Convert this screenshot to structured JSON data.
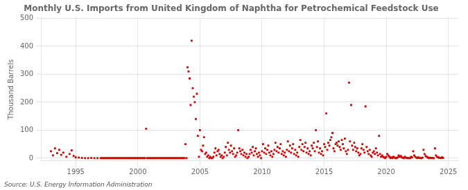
{
  "chart_data": {
    "type": "scatter",
    "title": "Monthly U.S. Imports from United Kingdom of Naphtha for Petrochemical Feedstock Use",
    "ylabel": "Thousand Barrels",
    "source": "Source: U.S. Energy Information Administration",
    "color": "#cc0000",
    "marker": "square",
    "grid": true,
    "xlim": [
      1992.2,
      2025.8
    ],
    "ylim": [
      -8,
      500
    ],
    "xticks": [
      1995,
      2000,
      2005,
      2010,
      2015,
      2020,
      2025
    ],
    "yticks": [
      0,
      100,
      200,
      300,
      400,
      500
    ],
    "x": [
      1993.0,
      1993.17,
      1993.33,
      1993.5,
      1993.67,
      1993.83,
      1994.0,
      1994.25,
      1994.5,
      1994.67,
      1994.83,
      1995.0,
      1995.25,
      1995.5,
      1995.75,
      1996.0,
      1996.25,
      1996.5,
      1996.75,
      1997.0,
      1997.08,
      1997.17,
      1997.25,
      1997.33,
      1997.42,
      1997.5,
      1997.58,
      1997.67,
      1997.75,
      1997.83,
      1997.92,
      1998.0,
      1998.08,
      1998.17,
      1998.25,
      1998.33,
      1998.42,
      1998.5,
      1998.58,
      1998.67,
      1998.75,
      1998.83,
      1998.92,
      1999.0,
      1999.08,
      1999.17,
      1999.25,
      1999.33,
      1999.42,
      1999.5,
      1999.58,
      1999.67,
      1999.75,
      1999.83,
      1999.92,
      2000.0,
      2000.08,
      2000.17,
      2000.25,
      2000.33,
      2000.42,
      2000.5,
      2000.58,
      2000.67,
      2000.75,
      2000.83,
      2000.92,
      2001.0,
      2001.08,
      2001.17,
      2001.25,
      2001.33,
      2001.42,
      2001.5,
      2001.58,
      2001.67,
      2001.75,
      2001.83,
      2001.92,
      2002.0,
      2002.08,
      2002.17,
      2002.25,
      2002.33,
      2002.42,
      2002.5,
      2002.58,
      2002.67,
      2002.75,
      2002.83,
      2002.92,
      2003.0,
      2003.08,
      2003.17,
      2003.25,
      2003.33,
      2003.42,
      2003.5,
      2003.58,
      2003.67,
      2003.75,
      2003.83,
      2003.92,
      2004.0,
      2004.08,
      2004.17,
      2004.25,
      2004.33,
      2004.42,
      2004.5,
      2004.58,
      2004.67,
      2004.75,
      2004.83,
      2004.92,
      2005.0,
      2005.08,
      2005.17,
      2005.25,
      2005.33,
      2005.42,
      2005.5,
      2005.58,
      2005.67,
      2005.75,
      2005.83,
      2005.92,
      2006.0,
      2006.08,
      2006.17,
      2006.25,
      2006.33,
      2006.42,
      2006.5,
      2006.58,
      2006.67,
      2006.75,
      2006.83,
      2006.92,
      2007.0,
      2007.08,
      2007.17,
      2007.25,
      2007.33,
      2007.42,
      2007.5,
      2007.58,
      2007.67,
      2007.75,
      2007.83,
      2007.92,
      2008.0,
      2008.08,
      2008.17,
      2008.25,
      2008.33,
      2008.42,
      2008.5,
      2008.58,
      2008.67,
      2008.75,
      2008.83,
      2008.92,
      2009.0,
      2009.08,
      2009.17,
      2009.25,
      2009.33,
      2009.42,
      2009.5,
      2009.58,
      2009.67,
      2009.75,
      2009.83,
      2009.92,
      2010.0,
      2010.08,
      2010.17,
      2010.25,
      2010.33,
      2010.42,
      2010.5,
      2010.58,
      2010.67,
      2010.75,
      2010.83,
      2010.92,
      2011.0,
      2011.08,
      2011.17,
      2011.25,
      2011.33,
      2011.42,
      2011.5,
      2011.58,
      2011.67,
      2011.75,
      2011.83,
      2011.92,
      2012.0,
      2012.08,
      2012.17,
      2012.25,
      2012.33,
      2012.42,
      2012.5,
      2012.58,
      2012.67,
      2012.75,
      2012.83,
      2012.92,
      2013.0,
      2013.08,
      2013.17,
      2013.25,
      2013.33,
      2013.42,
      2013.5,
      2013.58,
      2013.67,
      2013.75,
      2013.83,
      2013.92,
      2014.0,
      2014.08,
      2014.17,
      2014.25,
      2014.33,
      2014.42,
      2014.5,
      2014.58,
      2014.67,
      2014.75,
      2014.83,
      2014.92,
      2015.0,
      2015.08,
      2015.17,
      2015.25,
      2015.33,
      2015.42,
      2015.5,
      2015.58,
      2015.67,
      2015.75,
      2015.83,
      2015.92,
      2016.0,
      2016.08,
      2016.17,
      2016.25,
      2016.33,
      2016.42,
      2016.5,
      2016.58,
      2016.67,
      2016.75,
      2016.83,
      2016.92,
      2017.0,
      2017.08,
      2017.17,
      2017.25,
      2017.33,
      2017.42,
      2017.5,
      2017.58,
      2017.67,
      2017.75,
      2017.83,
      2017.92,
      2018.0,
      2018.08,
      2018.17,
      2018.25,
      2018.33,
      2018.42,
      2018.5,
      2018.58,
      2018.67,
      2018.75,
      2018.83,
      2018.92,
      2019.0,
      2019.08,
      2019.17,
      2019.25,
      2019.33,
      2019.42,
      2019.5,
      2019.58,
      2019.67,
      2019.75,
      2019.83,
      2019.92,
      2020.0,
      2020.08,
      2020.17,
      2020.25,
      2020.33,
      2020.42,
      2020.5,
      2020.58,
      2020.67,
      2020.75,
      2020.83,
      2020.92,
      2021.0,
      2021.08,
      2021.17,
      2021.25,
      2021.33,
      2021.42,
      2021.5,
      2021.58,
      2021.67,
      2021.75,
      2021.83,
      2021.92,
      2022.0,
      2022.08,
      2022.17,
      2022.25,
      2022.33,
      2022.42,
      2022.5,
      2022.58,
      2022.67,
      2022.75,
      2022.83,
      2022.92,
      2023.0,
      2023.08,
      2023.17,
      2023.25,
      2023.33,
      2023.42,
      2023.5,
      2023.58,
      2023.67,
      2023.75,
      2023.83,
      2023.92,
      2024.0,
      2024.08,
      2024.17,
      2024.25,
      2024.33,
      2024.42,
      2024.5,
      2024.58
    ],
    "values": [
      25,
      10,
      35,
      18,
      30,
      12,
      20,
      5,
      15,
      28,
      8,
      3,
      2,
      1,
      0,
      0,
      1,
      0,
      0,
      0,
      0,
      0,
      0,
      0,
      0,
      0,
      0,
      0,
      0,
      0,
      0,
      0,
      0,
      0,
      0,
      0,
      0,
      0,
      0,
      0,
      0,
      0,
      0,
      0,
      0,
      0,
      0,
      0,
      0,
      0,
      0,
      0,
      0,
      0,
      0,
      0,
      0,
      0,
      0,
      0,
      0,
      0,
      0,
      105,
      0,
      0,
      0,
      0,
      0,
      0,
      0,
      0,
      0,
      0,
      0,
      0,
      0,
      0,
      0,
      0,
      0,
      0,
      0,
      0,
      0,
      0,
      0,
      0,
      0,
      0,
      0,
      0,
      0,
      0,
      0,
      0,
      0,
      0,
      0,
      0,
      0,
      50,
      0,
      325,
      310,
      285,
      190,
      420,
      250,
      220,
      200,
      140,
      230,
      80,
      5,
      100,
      30,
      25,
      45,
      75,
      15,
      20,
      5,
      10,
      0,
      5,
      0,
      0,
      5,
      20,
      35,
      10,
      25,
      30,
      15,
      5,
      10,
      0,
      5,
      20,
      40,
      10,
      55,
      30,
      20,
      45,
      25,
      15,
      35,
      5,
      10,
      20,
      100,
      35,
      25,
      15,
      30,
      10,
      20,
      5,
      15,
      0,
      5,
      15,
      30,
      20,
      40,
      10,
      25,
      35,
      15,
      5,
      20,
      10,
      0,
      25,
      50,
      20,
      35,
      15,
      30,
      45,
      20,
      10,
      25,
      5,
      15,
      30,
      55,
      25,
      40,
      20,
      35,
      50,
      15,
      25,
      10,
      20,
      5,
      30,
      60,
      25,
      45,
      20,
      35,
      50,
      15,
      30,
      10,
      20,
      5,
      40,
      65,
      30,
      50,
      25,
      40,
      55,
      20,
      35,
      15,
      25,
      10,
      45,
      35,
      55,
      25,
      100,
      40,
      60,
      20,
      35,
      15,
      25,
      10,
      50,
      40,
      160,
      30,
      55,
      45,
      65,
      75,
      90,
      35,
      25,
      50,
      55,
      45,
      60,
      40,
      30,
      65,
      50,
      35,
      70,
      25,
      15,
      30,
      270,
      60,
      190,
      45,
      30,
      55,
      40,
      25,
      35,
      20,
      10,
      15,
      35,
      50,
      30,
      20,
      185,
      40,
      25,
      15,
      30,
      10,
      5,
      20,
      25,
      15,
      35,
      20,
      10,
      80,
      15,
      5,
      10,
      5,
      3,
      0,
      5,
      15,
      10,
      5,
      0,
      3,
      0,
      5,
      2,
      0,
      0,
      3,
      10,
      5,
      8,
      3,
      2,
      0,
      5,
      2,
      0,
      1,
      0,
      0,
      5,
      3,
      25,
      10,
      5,
      2,
      0,
      3,
      1,
      0,
      0,
      2,
      30,
      15,
      8,
      5,
      3,
      0,
      2,
      0,
      1,
      0,
      0,
      35,
      10,
      5,
      3,
      2,
      1,
      0,
      3,
      1
    ]
  }
}
